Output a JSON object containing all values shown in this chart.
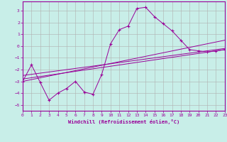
{
  "background_color": "#c8eee8",
  "plot_bg_color": "#c8eee8",
  "line_color": "#990099",
  "marker": "+",
  "xlabel": "Windchill (Refroidissement éolien,°C)",
  "xlim": [
    0,
    23
  ],
  "ylim": [
    -5.5,
    3.8
  ],
  "yticks": [
    -5,
    -4,
    -3,
    -2,
    -1,
    0,
    1,
    2,
    3
  ],
  "xticks": [
    0,
    1,
    2,
    3,
    4,
    5,
    6,
    7,
    8,
    9,
    10,
    11,
    12,
    13,
    14,
    15,
    16,
    17,
    18,
    19,
    20,
    21,
    22,
    23
  ],
  "grid_color": "#b0b0b0",
  "series": [
    {
      "x": [
        0,
        1,
        2,
        3,
        4,
        5,
        6,
        7,
        8,
        9,
        10,
        11,
        12,
        13,
        14,
        15,
        16,
        17,
        18,
        19,
        20,
        21,
        22,
        23
      ],
      "y": [
        -3.0,
        -1.6,
        -3.1,
        -4.6,
        -4.0,
        -3.6,
        -3.0,
        -3.9,
        -4.1,
        -2.4,
        0.2,
        1.4,
        1.7,
        3.2,
        3.3,
        2.5,
        1.9,
        1.3,
        0.5,
        -0.3,
        -0.4,
        -0.5,
        -0.4,
        -0.3
      ]
    },
    {
      "x": [
        0,
        23
      ],
      "y": [
        -3.0,
        0.5
      ]
    },
    {
      "x": [
        0,
        23
      ],
      "y": [
        -2.8,
        -0.3
      ]
    },
    {
      "x": [
        0,
        23
      ],
      "y": [
        -2.5,
        -0.2
      ]
    }
  ]
}
